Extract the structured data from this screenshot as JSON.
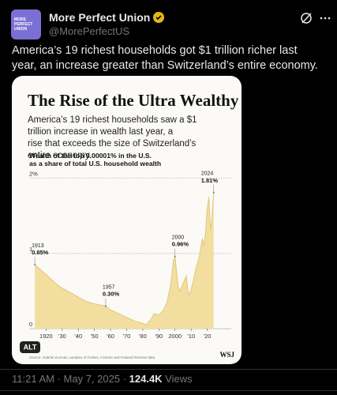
{
  "tweet": {
    "avatar_text": "MORE PERFECT UNION",
    "name": "More Perfect Union",
    "handle": "@MorePerfectUS",
    "text": "America’s 19 richest households got $1 trillion richer last year, an increase greater than Switzerland’s entire economy.",
    "time": "11:21 AM",
    "date": "May 7, 2025",
    "views": "124.4K",
    "views_word": "Views",
    "alt_badge": "ALT"
  },
  "chart_data": {
    "type": "area",
    "title": "The Rise of the Ultra Wealthy",
    "subtitle": "America’s 19 richest households saw a $1 trillion increase in wealth last year, a rise that exceeds the size of Switzerland’s entire economy.",
    "y_label": "Wealth of the top 0.00001% in the U.S. as a share of total U.S. household wealth",
    "source": "Source: Gabriel Zucman, analysis of Forbes, Fortune and Federal Reserve data",
    "logo": "WSJ",
    "color": "#f2dfa0",
    "line_color": "#e3c774",
    "x": [
      1913,
      1920,
      1925,
      1929,
      1935,
      1940,
      1945,
      1950,
      1955,
      1957,
      1960,
      1965,
      1970,
      1975,
      1980,
      1982,
      1985,
      1987,
      1990,
      1993,
      1995,
      1997,
      1998,
      1999,
      2000,
      2001,
      2002,
      2003,
      2005,
      2007,
      2008,
      2009,
      2011,
      2013,
      2015,
      2017,
      2018,
      2019,
      2020,
      2021,
      2022,
      2023,
      2024
    ],
    "values": [
      0.85,
      0.72,
      0.62,
      0.55,
      0.48,
      0.42,
      0.36,
      0.33,
      0.31,
      0.3,
      0.25,
      0.2,
      0.15,
      0.1,
      0.07,
      0.05,
      0.12,
      0.2,
      0.18,
      0.25,
      0.35,
      0.55,
      0.7,
      0.9,
      0.96,
      0.75,
      0.55,
      0.5,
      0.6,
      0.7,
      0.5,
      0.45,
      0.6,
      0.8,
      0.95,
      1.2,
      1.1,
      1.3,
      1.6,
      1.75,
      1.3,
      1.5,
      1.81
    ],
    "xlim": [
      1911,
      2030
    ],
    "ylim": [
      0,
      2.05
    ],
    "xticks": [
      1920,
      {
        "value": 1930,
        "label": "'30"
      },
      {
        "value": 1940,
        "label": "'40"
      },
      {
        "value": 1950,
        "label": "'50"
      },
      {
        "value": 1960,
        "label": "'60"
      },
      {
        "value": 1970,
        "label": "'70"
      },
      {
        "value": 1980,
        "label": "'80"
      },
      {
        "value": 1990,
        "label": "'90"
      },
      2000,
      {
        "value": 2010,
        "label": "'10"
      },
      {
        "value": 2020,
        "label": "'20"
      }
    ],
    "yticks": [
      0,
      1,
      {
        "value": 2,
        "label": "2%"
      }
    ],
    "grid": true,
    "annotations": [
      {
        "x": 1913,
        "value": 0.85,
        "label": "0.85%"
      },
      {
        "x": 1957,
        "value": 0.3,
        "label": "0.30%"
      },
      {
        "x": 2000,
        "value": 0.96,
        "label": "0.96%"
      },
      {
        "x": 2024,
        "value": 1.81,
        "label": "1.81%"
      }
    ]
  }
}
